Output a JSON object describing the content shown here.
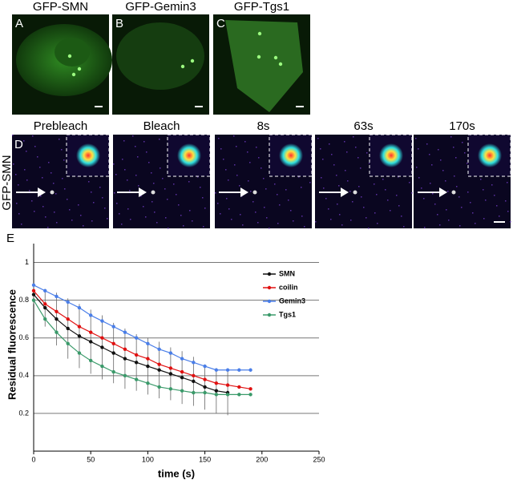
{
  "top_panels": [
    {
      "letter": "A",
      "label": "GFP-SMN"
    },
    {
      "letter": "B",
      "label": "GFP-Gemin3"
    },
    {
      "letter": "C",
      "label": "GFP-Tgs1"
    }
  ],
  "frap_row": {
    "letter": "D",
    "row_label": "GFP-SMN",
    "frames": [
      "Prebleach",
      "Bleach",
      "8s",
      "63s",
      "170s"
    ]
  },
  "chart_data": {
    "type": "line",
    "letter": "E",
    "xlabel": "time (s)",
    "ylabel": "Residual fluorescence",
    "x": [
      0,
      10,
      20,
      30,
      40,
      50,
      60,
      70,
      80,
      90,
      100,
      110,
      120,
      130,
      140,
      150,
      160,
      170,
      180,
      190
    ],
    "xlim": [
      0,
      250
    ],
    "xticks": [
      0,
      50,
      100,
      150,
      200,
      250
    ],
    "ylim": [
      0,
      1.1
    ],
    "yticks": [
      0.2,
      0.4,
      0.6,
      0.8,
      1
    ],
    "grid": true,
    "legend": "top-right",
    "series": [
      {
        "name": "SMN",
        "color": "#111111",
        "values": [
          0.83,
          0.76,
          0.7,
          0.65,
          0.61,
          0.58,
          0.55,
          0.52,
          0.49,
          0.47,
          0.45,
          0.43,
          0.41,
          0.39,
          0.37,
          0.34,
          0.32,
          0.31,
          null,
          null
        ],
        "errors": [
          0.05,
          0.1,
          0.14,
          0.16,
          0.17,
          0.17,
          0.17,
          0.16,
          0.16,
          0.15,
          0.15,
          0.15,
          0.14,
          0.14,
          0.13,
          0.12,
          0.12,
          0.12,
          null,
          null
        ]
      },
      {
        "name": "coilin",
        "color": "#e01010",
        "values": [
          0.85,
          0.78,
          0.74,
          0.7,
          0.66,
          0.63,
          0.6,
          0.57,
          0.54,
          0.51,
          0.49,
          0.46,
          0.44,
          0.42,
          0.4,
          0.38,
          0.36,
          0.35,
          0.34,
          0.33
        ]
      },
      {
        "name": "Gemin3",
        "color": "#4a7ee8",
        "values": [
          0.88,
          0.85,
          0.82,
          0.79,
          0.76,
          0.72,
          0.69,
          0.66,
          0.63,
          0.6,
          0.57,
          0.54,
          0.52,
          0.49,
          0.47,
          0.45,
          0.43,
          0.43,
          0.43,
          0.43
        ]
      },
      {
        "name": "Tgs1",
        "color": "#3a9a6a",
        "values": [
          0.8,
          0.7,
          0.63,
          0.57,
          0.52,
          0.48,
          0.45,
          0.42,
          0.4,
          0.38,
          0.36,
          0.34,
          0.33,
          0.32,
          0.31,
          0.31,
          0.3,
          0.3,
          0.3,
          0.3
        ]
      }
    ]
  }
}
